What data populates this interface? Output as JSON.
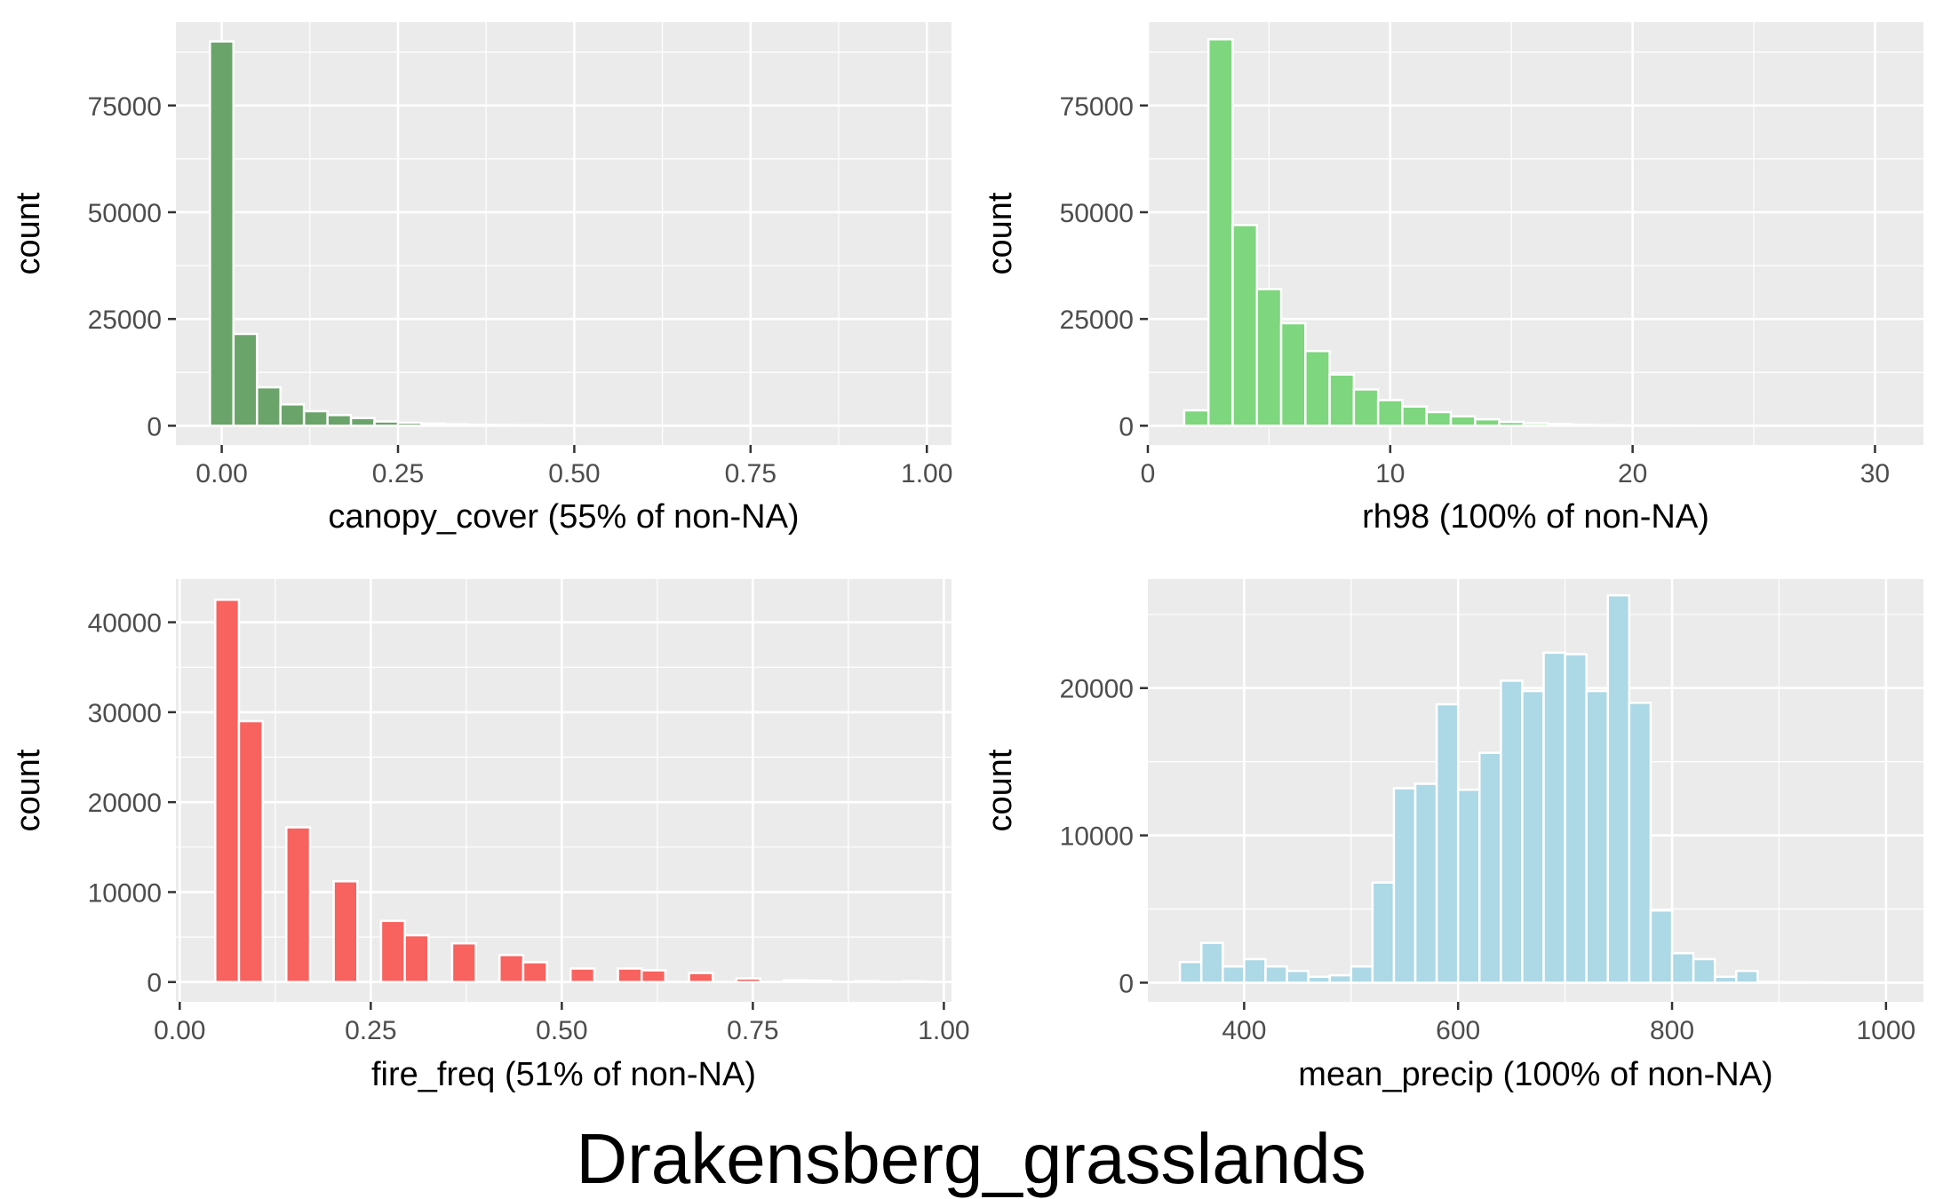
{
  "figure": {
    "title": "Drakensberg_grasslands",
    "panel_background": "#EBEBEB",
    "grid_color": "#FFFFFF",
    "tick_color": "#333333",
    "tick_label_color": "#4D4D4D",
    "bar_outline": "#FFFFFF"
  },
  "chart_data": [
    {
      "type": "bar",
      "variant": "histogram",
      "xlabel": "canopy_cover (55% of non-NA)",
      "ylabel": "count",
      "color": "#6BA46B",
      "xlim": [
        -0.065,
        1.035
      ],
      "ylim": [
        -4500,
        94500
      ],
      "x_ticks": [
        0,
        0.25,
        0.5,
        0.75,
        1
      ],
      "x_tick_labels": [
        "0.00",
        "0.25",
        "0.50",
        "0.75",
        "1.00"
      ],
      "y_ticks": [
        0,
        25000,
        50000,
        75000
      ],
      "y_tick_labels": [
        "0",
        "25000",
        "50000",
        "75000"
      ],
      "bin_width": 0.0333,
      "bin_starts": [
        -0.0167,
        0.0167,
        0.05,
        0.0833,
        0.1167,
        0.15,
        0.1833,
        0.2167,
        0.25,
        0.2833,
        0.3167,
        0.35,
        0.3833,
        0.4167,
        0.45,
        0.4833,
        0.5167,
        0.55,
        0.5833,
        0.6167,
        0.65,
        0.6833,
        0.7167,
        0.75,
        0.7833,
        0.8167,
        0.85,
        0.8833,
        0.9167,
        0.95
      ],
      "values": [
        90000,
        21500,
        9000,
        5000,
        3400,
        2500,
        1800,
        1000,
        700,
        500,
        350,
        250,
        200,
        150,
        120,
        100,
        80,
        60,
        50,
        40,
        30,
        25,
        20,
        15,
        10,
        8,
        6,
        5,
        4,
        3
      ]
    },
    {
      "type": "bar",
      "variant": "histogram",
      "xlabel": "rh98 (100% of non-NA)",
      "ylabel": "count",
      "color": "#7ED67E",
      "xlim": [
        0,
        32
      ],
      "ylim": [
        -4500,
        94500
      ],
      "x_ticks": [
        0,
        10,
        20,
        30
      ],
      "x_tick_labels": [
        "0",
        "10",
        "20",
        "30"
      ],
      "y_ticks": [
        0,
        25000,
        50000,
        75000
      ],
      "y_tick_labels": [
        "0",
        "25000",
        "50000",
        "75000"
      ],
      "bin_width": 1,
      "bin_starts": [
        1.5,
        2.5,
        3.5,
        4.5,
        5.5,
        6.5,
        7.5,
        8.5,
        9.5,
        10.5,
        11.5,
        12.5,
        13.5,
        14.5,
        15.5,
        16.5,
        17.5,
        18.5,
        19.5,
        20.5,
        21.5,
        22.5,
        23.5,
        24.5,
        25.5,
        26.5,
        27.5,
        28.5,
        29.5
      ],
      "values": [
        3600,
        90500,
        47000,
        32000,
        24000,
        17500,
        12000,
        8500,
        6000,
        4500,
        3200,
        2200,
        1500,
        900,
        600,
        400,
        250,
        150,
        100,
        70,
        50,
        30,
        20,
        15,
        10,
        8,
        5,
        4,
        3
      ]
    },
    {
      "type": "bar",
      "variant": "histogram",
      "xlabel": "fire_freq (51% of non-NA)",
      "ylabel": "count",
      "color": "#F8625F",
      "xlim": [
        -0.005,
        1.01
      ],
      "ylim": [
        -2200,
        44800
      ],
      "x_ticks": [
        0,
        0.25,
        0.5,
        0.75,
        1
      ],
      "x_tick_labels": [
        "0.00",
        "0.25",
        "0.50",
        "0.75",
        "1.00"
      ],
      "y_ticks": [
        0,
        10000,
        20000,
        30000,
        40000
      ],
      "y_tick_labels": [
        "0",
        "10000",
        "20000",
        "30000",
        "40000"
      ],
      "bin_width": 0.031,
      "bin_starts": [
        0.0465,
        0.0775,
        0.1395,
        0.2015,
        0.2635,
        0.2945,
        0.3565,
        0.4185,
        0.4495,
        0.5115,
        0.5735,
        0.6045,
        0.6665,
        0.7285,
        0.7905,
        0.8215,
        0.8835,
        0.9455
      ],
      "values": [
        42500,
        29000,
        17200,
        11200,
        6800,
        5200,
        4300,
        3000,
        2200,
        1500,
        1500,
        1300,
        1000,
        400,
        200,
        150,
        100,
        80
      ]
    },
    {
      "type": "bar",
      "variant": "histogram",
      "xlabel": "mean_precip (100% of non-NA)",
      "ylabel": "count",
      "color": "#ADD8E6",
      "xlim": [
        310,
        1035
      ],
      "ylim": [
        -1300,
        27400
      ],
      "x_ticks": [
        400,
        600,
        800,
        1000
      ],
      "x_tick_labels": [
        "400",
        "600",
        "800",
        "1000"
      ],
      "y_ticks": [
        0,
        10000,
        20000
      ],
      "y_tick_labels": [
        "0",
        "10000",
        "20000"
      ],
      "bin_width": 20,
      "bin_starts": [
        340,
        360,
        380,
        400,
        420,
        440,
        460,
        480,
        500,
        520,
        540,
        560,
        580,
        600,
        620,
        640,
        660,
        680,
        700,
        720,
        740,
        760,
        780,
        800,
        820,
        840,
        860,
        880,
        900,
        920,
        940,
        960,
        980
      ],
      "values": [
        1400,
        2700,
        1100,
        1600,
        1100,
        800,
        400,
        500,
        1100,
        6800,
        13200,
        13500,
        18900,
        13100,
        15600,
        20500,
        19800,
        22400,
        22300,
        19800,
        26300,
        19000,
        4900,
        2000,
        1600,
        400,
        800,
        60,
        40,
        30,
        20,
        15,
        10
      ]
    }
  ]
}
